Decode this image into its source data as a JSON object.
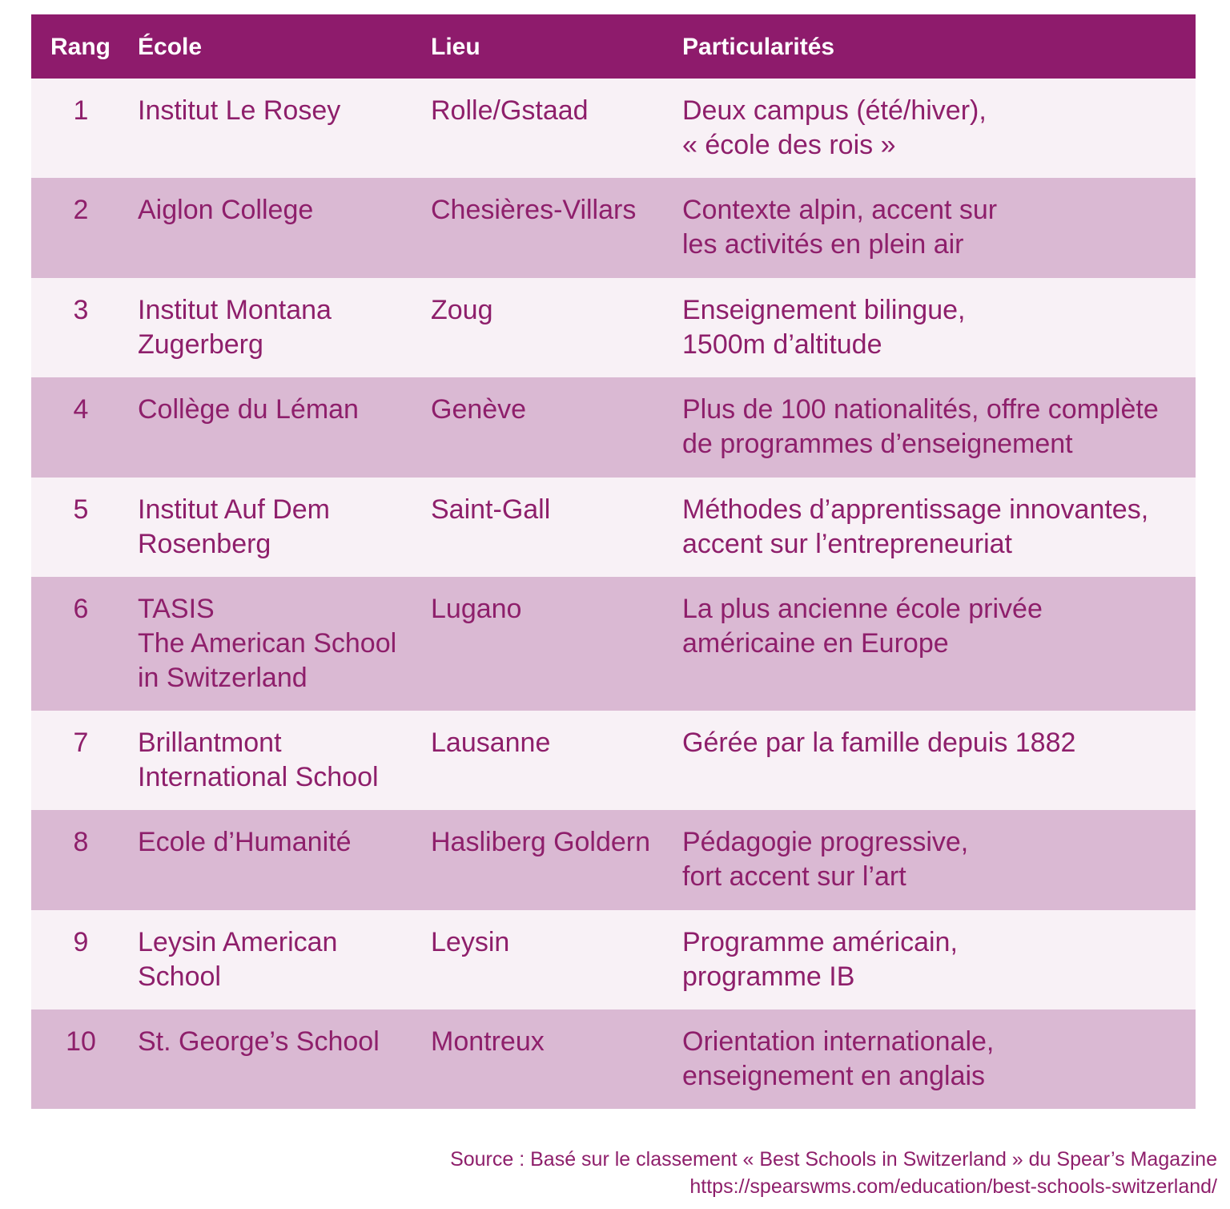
{
  "table": {
    "headers": {
      "rank": "Rang",
      "school": "École",
      "place": "Lieu",
      "notes": "Particularités"
    },
    "rows": [
      {
        "rank": "1",
        "school": "Institut Le Rosey",
        "place": "Rolle/Gstaad",
        "notes": "Deux campus (été/hiver),\n« école des rois »"
      },
      {
        "rank": "2",
        "school": "Aiglon College",
        "place": "Chesières-Villars",
        "notes": "Contexte alpin, accent sur\nles activités en plein air"
      },
      {
        "rank": "3",
        "school": "Institut Montana\nZugerberg",
        "place": "Zoug",
        "notes": "Enseignement bilingue,\n1500m d’altitude"
      },
      {
        "rank": "4",
        "school": "Collège du Léman",
        "place": "Genève",
        "notes": "Plus de 100 nationalités, offre complète\nde programmes d’enseignement"
      },
      {
        "rank": "5",
        "school": "Institut Auf Dem\nRosenberg",
        "place": "Saint-Gall",
        "notes": "Méthodes d’apprentissage innovantes,\naccent sur l’entrepreneuriat"
      },
      {
        "rank": "6",
        "school": "TASIS\nThe American School\nin Switzerland",
        "place": "Lugano",
        "notes": "La plus ancienne école privée\naméricaine en Europe"
      },
      {
        "rank": "7",
        "school": "Brillantmont\nInternational School",
        "place": "Lausanne",
        "notes": "Gérée par la famille depuis 1882"
      },
      {
        "rank": "8",
        "school": "Ecole d’Humanité",
        "place": "Hasliberg Goldern",
        "notes": "Pédagogie progressive,\nfort accent sur l’art"
      },
      {
        "rank": "9",
        "school": "Leysin American\nSchool",
        "place": "Leysin",
        "notes": "Programme américain,\nprogramme IB"
      },
      {
        "rank": "10",
        "school": "St. George’s School",
        "place": "Montreux",
        "notes": "Orientation internationale,\nenseignement en anglais"
      }
    ]
  },
  "source": {
    "line1": "Source : Basé sur le classement « Best Schools in Switzerland » du Spear’s Magazine",
    "line2": "https://spearswms.com/education/best-schools-switzerland/"
  },
  "colors": {
    "header_bg": "#8e1b6c",
    "row_light": "#f8f1f6",
    "row_dark": "#dab9d3",
    "text": "#8e1f6b"
  }
}
